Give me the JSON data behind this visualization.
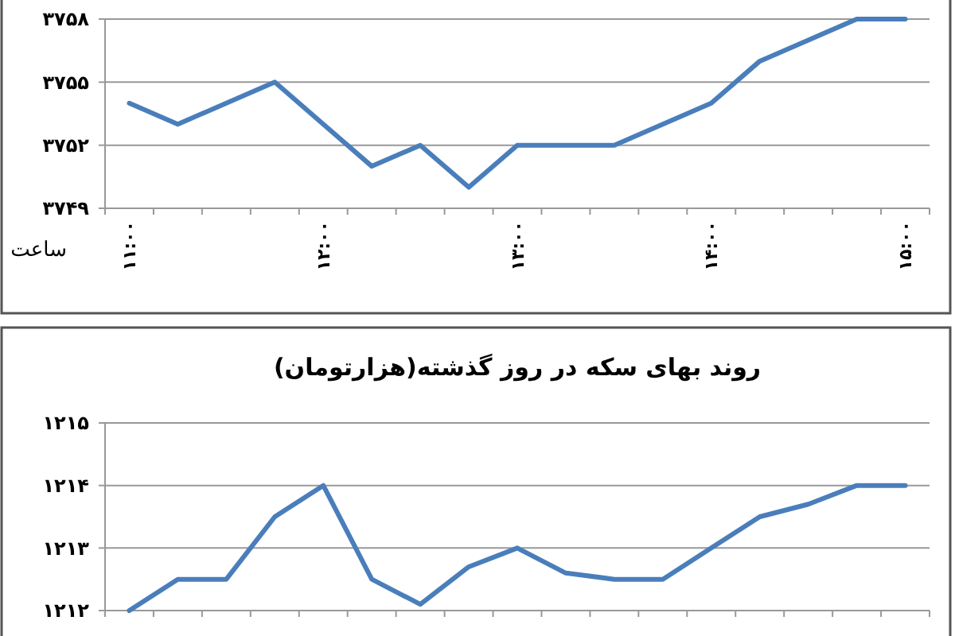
{
  "chart_data": [
    {
      "type": "line",
      "xlabel": "ساعت",
      "categories": [
        "۱۱:۰۰",
        null,
        null,
        null,
        "۱۲:۰۰",
        null,
        null,
        null,
        "۱۳:۰۰",
        null,
        null,
        null,
        "۱۴:۰۰",
        null,
        null,
        null,
        "۱۵:۰۰"
      ],
      "series": [
        {
          "color": "#4a7ebb",
          "values": [
            3754,
            3753,
            3754,
            3755,
            3753,
            3751,
            3752,
            3750,
            3752,
            3752,
            3752,
            3753,
            3754,
            3756,
            3757,
            3758,
            3758
          ]
        }
      ],
      "ylim": [
        3749,
        3758
      ],
      "yticks": [
        {
          "value": 3749,
          "label": "۳۷۴۹"
        },
        {
          "value": 3752,
          "label": "۳۷۵۲"
        },
        {
          "value": 3755,
          "label": "۳۷۵۵"
        },
        {
          "value": 3758,
          "label": "۳۷۵۸"
        }
      ],
      "grid": "y",
      "marker": "none",
      "line_style": "solid"
    },
    {
      "type": "line",
      "title": "روند بهای سکه در روز گذشته(هزارتومان)",
      "categories": [
        null,
        null,
        null,
        null,
        null,
        null,
        null,
        null,
        null,
        null,
        null,
        null,
        null,
        null,
        null,
        null,
        null
      ],
      "series": [
        {
          "color": "#4a7ebb",
          "values": [
            1212,
            1212.5,
            1212.5,
            1213.5,
            1214,
            1212.5,
            1212.1,
            1212.7,
            1213,
            1212.6,
            1212.5,
            1212.5,
            1213,
            1213.5,
            1213.7,
            1214,
            1214
          ]
        }
      ],
      "ylim": [
        1212,
        1215
      ],
      "yticks": [
        {
          "value": 1212,
          "label": "۱۲۱۲"
        },
        {
          "value": 1213,
          "label": "۱۲۱۳"
        },
        {
          "value": 1214,
          "label": "۱۲۱۴"
        },
        {
          "value": 1215,
          "label": "۱۲۱۵"
        }
      ],
      "grid": "y",
      "tick_labels": "y",
      "marker": "none",
      "line_style": "solid"
    }
  ]
}
